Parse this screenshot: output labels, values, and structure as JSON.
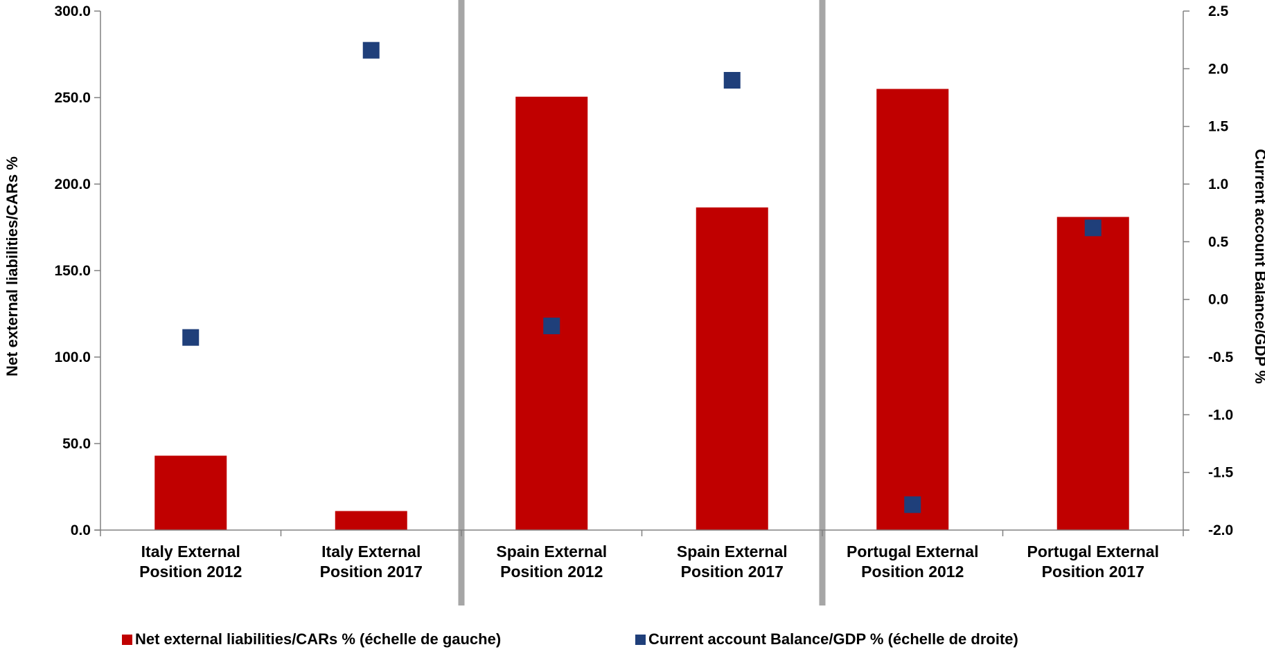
{
  "chart_data": {
    "type": "bar",
    "categories": [
      [
        "Italy External",
        "Position 2012"
      ],
      [
        "Italy External",
        "Position 2017"
      ],
      [
        "Spain External",
        "Position 2012"
      ],
      [
        "Spain External",
        "Position 2017"
      ],
      [
        "Portugal External",
        "Position 2012"
      ],
      [
        "Portugal External",
        "Position 2017"
      ]
    ],
    "series": [
      {
        "name": "Net external liabilities/CARs % (échelle de gauche)",
        "type": "bar",
        "axis": "left",
        "color": "#C00000",
        "values": [
          43.0,
          11.0,
          250.5,
          186.5,
          255.0,
          181.0
        ]
      },
      {
        "name": "Current account Balance/GDP % (échelle de droite)",
        "type": "scatter",
        "axis": "right",
        "color": "#1F3F7A",
        "values": [
          -0.33,
          2.16,
          -0.23,
          1.9,
          -1.78,
          0.62
        ]
      }
    ],
    "ylabel": "Net external liabilities/CARs %",
    "ylabel_right": "Current account Balance/GDP %",
    "ylim": [
      0,
      300
    ],
    "ylim_right": [
      -2.0,
      2.5
    ],
    "yticks": [
      "0.0",
      "50.0",
      "100.0",
      "150.0",
      "200.0",
      "250.0",
      "300.0"
    ],
    "yticks_right": [
      "-2.0",
      "-1.5",
      "-1.0",
      "-0.5",
      "0.0",
      "0.5",
      "1.0",
      "1.5",
      "2.0",
      "2.5"
    ],
    "grid": false,
    "legend_position": "bottom",
    "separators_after_category": [
      1,
      3
    ],
    "separator_color": "#A6A6A6"
  }
}
